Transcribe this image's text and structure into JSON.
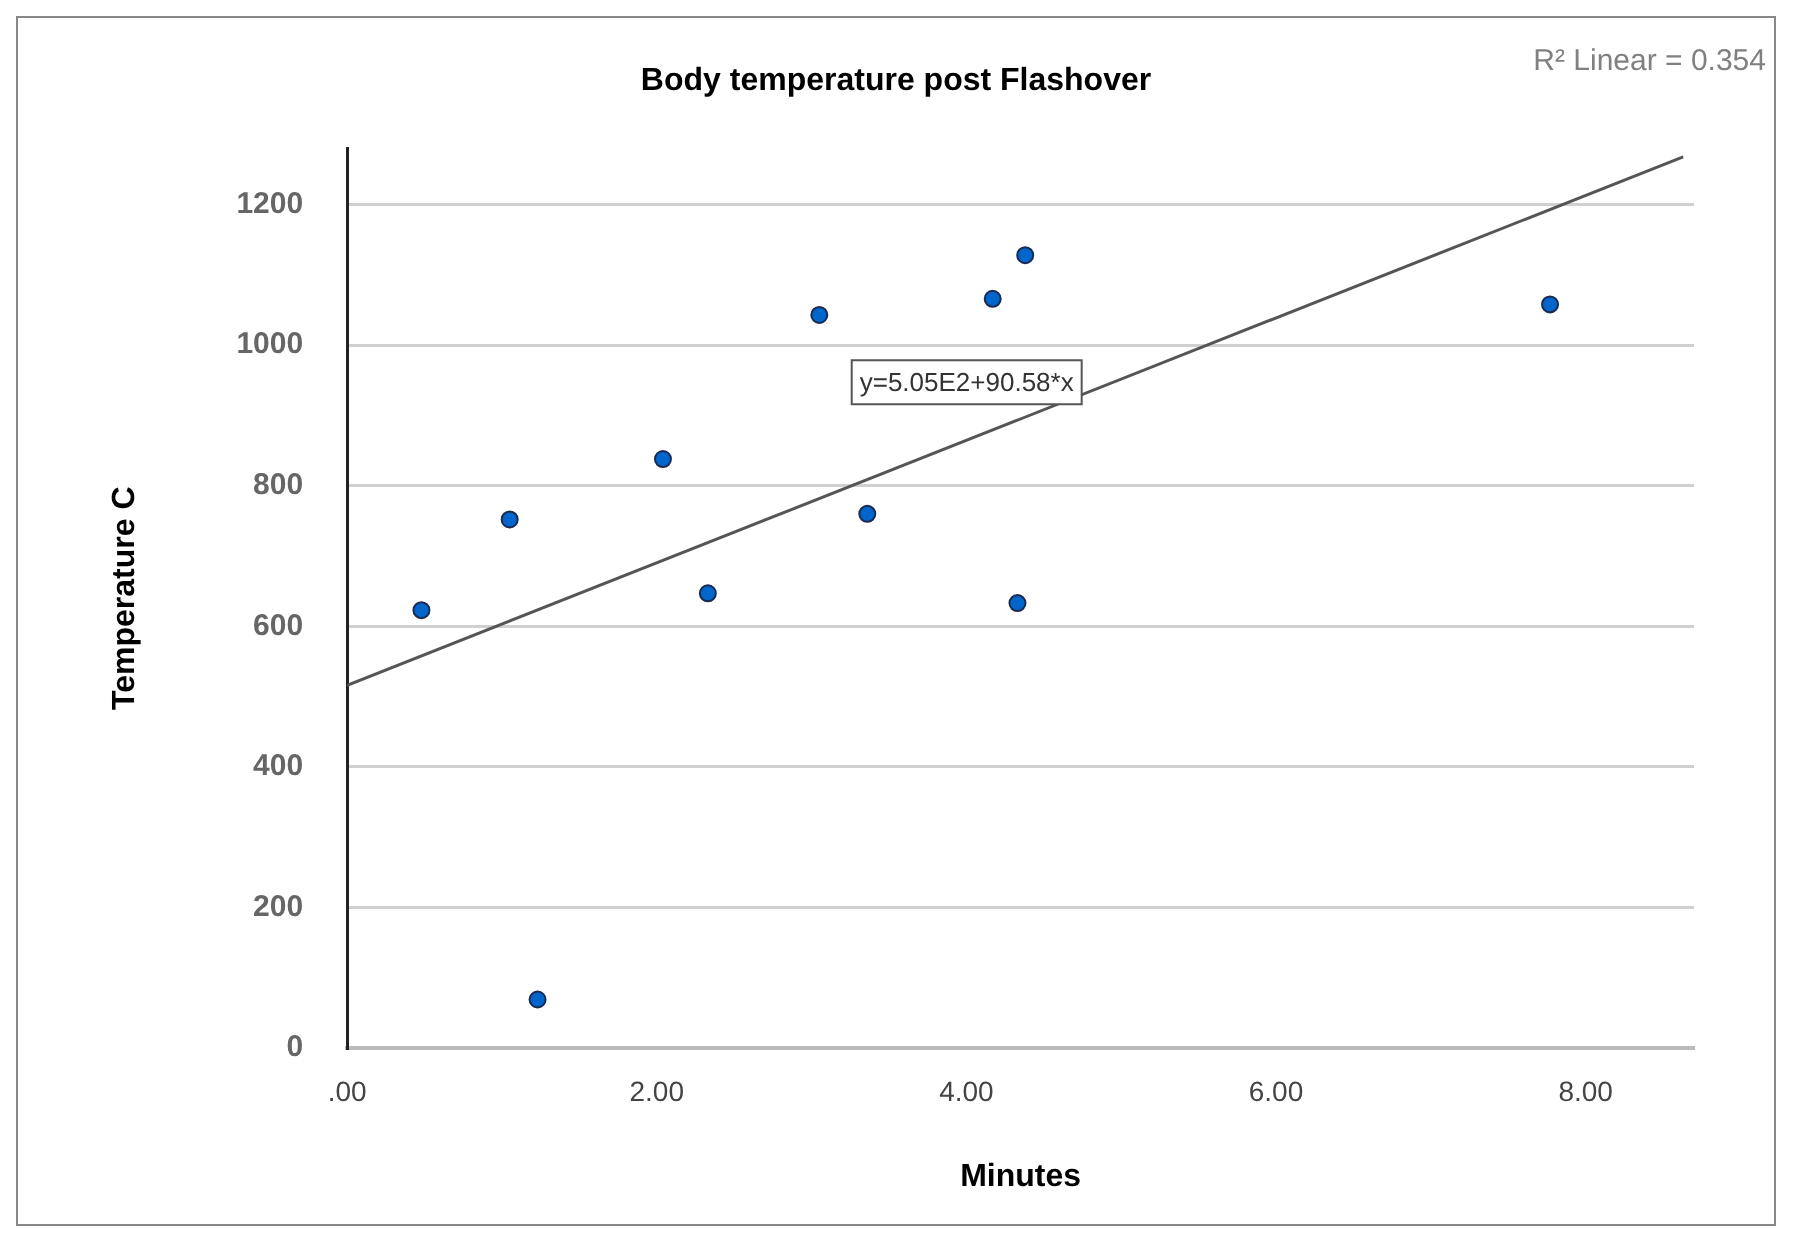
{
  "chart_data": {
    "type": "scatter",
    "title": "Body temperature post Flashover",
    "xlabel": "Minutes",
    "ylabel": "Temperature C",
    "annotations": [
      "y=5.05E2+90.58*x",
      "R² Linear = 0.354"
    ],
    "series": [
      {
        "color": "#0066cc",
        "marker": "circle",
        "x": [
          0.48,
          1.05,
          1.23,
          2.04,
          2.33,
          3.05,
          3.36,
          4.17,
          4.33,
          4.38,
          7.77
        ],
        "values": [
          623,
          752,
          69,
          838,
          647,
          1043,
          760,
          1066,
          633,
          1128,
          1058
        ]
      },
      {
        "type": "line",
        "marker": "none",
        "color": "#555555",
        "x": [
          0,
          8.63
        ],
        "values": [
          516,
          1268
        ]
      }
    ],
    "xlim": [
      0,
      8.7
    ],
    "xticks": [
      {
        "value": 0,
        "label": ".00"
      },
      {
        "value": 2,
        "label": "2.00"
      },
      {
        "value": 4,
        "label": "4.00"
      },
      {
        "value": 6,
        "label": "6.00"
      },
      {
        "value": 8,
        "label": "8.00"
      }
    ],
    "ylim": [
      0,
      1280
    ],
    "yticks": [
      0,
      200,
      400,
      600,
      800,
      1000,
      1200
    ],
    "grid": "y",
    "legend": false
  }
}
